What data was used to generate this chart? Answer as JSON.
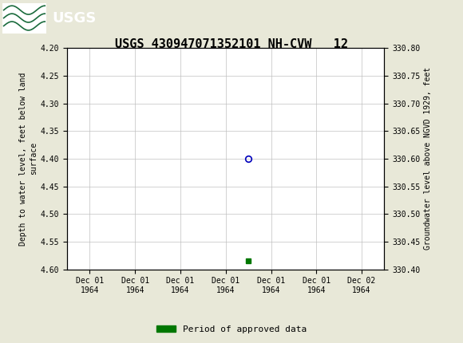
{
  "title": "USGS 430947071352101 NH-CVW   12",
  "title_fontsize": 11,
  "header_color": "#1a6b3c",
  "bg_color": "#e8e8d8",
  "plot_bg_color": "#ffffff",
  "left_ylabel": "Depth to water level, feet below land\nsurface",
  "right_ylabel": "Groundwater level above NGVD 1929, feet",
  "ylim_left": [
    4.2,
    4.6
  ],
  "ylim_right": [
    330.4,
    330.8
  ],
  "yticks_left": [
    4.2,
    4.25,
    4.3,
    4.35,
    4.4,
    4.45,
    4.5,
    4.55,
    4.6
  ],
  "yticks_right": [
    330.4,
    330.45,
    330.5,
    330.55,
    330.6,
    330.65,
    330.7,
    330.75,
    330.8
  ],
  "data_point_x": 3.5,
  "data_point_y": 4.4,
  "data_point_color": "#0000bb",
  "green_bar_x": 3.5,
  "green_bar_y": 4.585,
  "green_bar_color": "#007700",
  "grid_color": "#c0c0c0",
  "tick_fontsize": 7,
  "xtick_labels": [
    "Dec 01\n1964",
    "Dec 01\n1964",
    "Dec 01\n1964",
    "Dec 01\n1964",
    "Dec 01\n1964",
    "Dec 01\n1964",
    "Dec 02\n1964"
  ],
  "xtick_positions": [
    0,
    1,
    2,
    3,
    4,
    5,
    6
  ],
  "legend_label": "Period of approved data",
  "legend_color": "#007700",
  "font_family": "DejaVu Sans Mono"
}
